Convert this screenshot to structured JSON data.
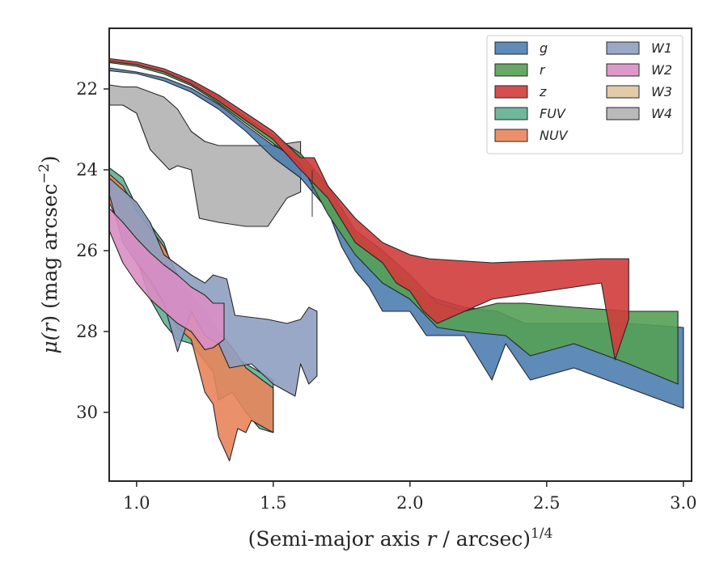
{
  "chart_data": {
    "type": "area",
    "xlabel": "(Semi-major axis r / arcsec)",
    "xlabel_parts": {
      "pre": "(Semi-major axis ",
      "var": "r",
      "post": " / arcsec)",
      "sup": "1/4"
    },
    "ylabel_parts": {
      "mu": "μ(",
      "var": "r",
      "mid": ") (mag arcsec",
      "sup": "−2",
      "post": ")"
    },
    "xlim": [
      0.9,
      3.03
    ],
    "ylim": [
      31.7,
      20.5
    ],
    "y_inverted": true,
    "xticks": [
      1.0,
      1.5,
      2.0,
      2.5,
      3.0
    ],
    "xtick_labels": [
      "1.0",
      "1.5",
      "2.0",
      "2.5",
      "3.0"
    ],
    "yticks": [
      22,
      24,
      26,
      28,
      30
    ],
    "ytick_labels": [
      "22",
      "24",
      "26",
      "28",
      "30"
    ],
    "grid": false,
    "legend": {
      "placement": "top-right",
      "columns": 2
    },
    "series": [
      {
        "name": "g",
        "color": "#4c7eb0",
        "upper": [
          [
            0.9,
            21.48
          ],
          [
            1.0,
            21.58
          ],
          [
            1.1,
            21.72
          ],
          [
            1.2,
            21.98
          ],
          [
            1.3,
            22.38
          ],
          [
            1.4,
            22.9
          ],
          [
            1.5,
            23.4
          ],
          [
            1.6,
            23.7
          ],
          [
            1.7,
            24.5
          ],
          [
            1.8,
            25.6
          ],
          [
            1.9,
            26.3
          ],
          [
            2.0,
            26.9
          ],
          [
            2.1,
            27.2
          ],
          [
            2.2,
            27.4
          ],
          [
            2.32,
            27.5
          ],
          [
            2.42,
            27.8
          ],
          [
            2.6,
            27.8
          ],
          [
            2.8,
            27.8
          ],
          [
            3.0,
            27.9
          ]
        ],
        "lower": [
          [
            3.0,
            29.9
          ],
          [
            2.8,
            29.4
          ],
          [
            2.6,
            28.9
          ],
          [
            2.44,
            29.2
          ],
          [
            2.35,
            28.3
          ],
          [
            2.3,
            29.2
          ],
          [
            2.2,
            28.1
          ],
          [
            2.1,
            28.1
          ],
          [
            2.06,
            28.1
          ],
          [
            2.0,
            27.5
          ],
          [
            1.95,
            27.5
          ],
          [
            1.9,
            27.5
          ],
          [
            1.85,
            26.9
          ],
          [
            1.8,
            26.5
          ],
          [
            1.75,
            25.9
          ],
          [
            1.7,
            25.0
          ],
          [
            1.6,
            24.2
          ],
          [
            1.5,
            23.7
          ],
          [
            1.4,
            23.05
          ],
          [
            1.3,
            22.5
          ],
          [
            1.2,
            22.08
          ],
          [
            1.1,
            21.8
          ],
          [
            1.0,
            21.62
          ],
          [
            0.9,
            21.55
          ]
        ]
      },
      {
        "name": "r",
        "color": "#55a055",
        "upper": [
          [
            0.9,
            21.28
          ],
          [
            1.0,
            21.38
          ],
          [
            1.1,
            21.55
          ],
          [
            1.2,
            21.82
          ],
          [
            1.3,
            22.2
          ],
          [
            1.4,
            22.7
          ],
          [
            1.5,
            23.15
          ],
          [
            1.6,
            23.6
          ],
          [
            1.7,
            24.4
          ],
          [
            1.8,
            25.5
          ],
          [
            1.9,
            26.0
          ],
          [
            2.0,
            26.6
          ],
          [
            2.1,
            27.3
          ],
          [
            2.2,
            27.5
          ],
          [
            2.32,
            27.3
          ],
          [
            2.42,
            27.3
          ],
          [
            2.6,
            27.4
          ],
          [
            2.8,
            27.5
          ],
          [
            2.98,
            27.5
          ]
        ],
        "lower": [
          [
            2.98,
            29.3
          ],
          [
            2.8,
            28.8
          ],
          [
            2.6,
            28.3
          ],
          [
            2.44,
            28.6
          ],
          [
            2.35,
            28.1
          ],
          [
            2.2,
            28.0
          ],
          [
            2.1,
            27.9
          ],
          [
            2.0,
            27.2
          ],
          [
            1.9,
            26.8
          ],
          [
            1.8,
            26.1
          ],
          [
            1.7,
            25.1
          ],
          [
            1.6,
            23.85
          ],
          [
            1.5,
            23.35
          ],
          [
            1.4,
            22.85
          ],
          [
            1.3,
            22.35
          ],
          [
            1.2,
            21.92
          ],
          [
            1.1,
            21.63
          ],
          [
            1.0,
            21.44
          ],
          [
            0.9,
            21.35
          ]
        ]
      },
      {
        "name": "z",
        "color": "#d03c3c",
        "upper": [
          [
            0.9,
            21.25
          ],
          [
            1.0,
            21.33
          ],
          [
            1.1,
            21.5
          ],
          [
            1.2,
            21.78
          ],
          [
            1.3,
            22.15
          ],
          [
            1.4,
            22.6
          ],
          [
            1.5,
            23.05
          ],
          [
            1.6,
            23.7
          ],
          [
            1.65,
            23.7
          ],
          [
            1.7,
            24.4
          ],
          [
            1.8,
            25.2
          ],
          [
            1.9,
            25.8
          ],
          [
            2.0,
            26.1
          ],
          [
            2.07,
            26.2
          ],
          [
            2.3,
            26.3
          ],
          [
            2.7,
            26.2
          ],
          [
            2.8,
            26.2
          ]
        ],
        "lower": [
          [
            2.8,
            27.7
          ],
          [
            2.75,
            28.7
          ],
          [
            2.7,
            26.8
          ],
          [
            2.5,
            27.0
          ],
          [
            2.3,
            27.2
          ],
          [
            2.1,
            27.8
          ],
          [
            2.05,
            27.5
          ],
          [
            2.0,
            27.0
          ],
          [
            1.95,
            26.8
          ],
          [
            1.9,
            26.3
          ],
          [
            1.8,
            25.8
          ],
          [
            1.7,
            24.7
          ],
          [
            1.6,
            24.0
          ],
          [
            1.5,
            23.25
          ],
          [
            1.4,
            22.78
          ],
          [
            1.3,
            22.3
          ],
          [
            1.2,
            21.88
          ],
          [
            1.1,
            21.58
          ],
          [
            1.0,
            21.4
          ],
          [
            0.9,
            21.32
          ]
        ]
      },
      {
        "name": "FUV",
        "color": "#5fb092",
        "upper": [
          [
            0.9,
            23.95
          ],
          [
            0.95,
            24.2
          ],
          [
            1.0,
            24.9
          ],
          [
            1.1,
            25.8
          ],
          [
            1.15,
            26.8
          ],
          [
            1.2,
            27.3
          ],
          [
            1.25,
            27.8
          ],
          [
            1.3,
            28.2
          ],
          [
            1.35,
            28.6
          ],
          [
            1.4,
            28.8
          ],
          [
            1.5,
            29.2
          ]
        ],
        "lower": [
          [
            1.5,
            30.5
          ],
          [
            1.45,
            30.4
          ],
          [
            1.4,
            30.0
          ],
          [
            1.35,
            29.5
          ],
          [
            1.3,
            29.7
          ],
          [
            1.28,
            29.0
          ],
          [
            1.2,
            28.3
          ],
          [
            1.15,
            28.2
          ],
          [
            1.1,
            27.8
          ],
          [
            1.05,
            27.2
          ],
          [
            1.0,
            26.2
          ],
          [
            0.95,
            25.2
          ],
          [
            0.9,
            24.5
          ]
        ]
      },
      {
        "name": "NUV",
        "color": "#e8855c",
        "upper": [
          [
            0.9,
            24.1
          ],
          [
            0.95,
            24.4
          ],
          [
            1.0,
            25.0
          ],
          [
            1.1,
            25.9
          ],
          [
            1.15,
            26.6
          ],
          [
            1.2,
            27.1
          ],
          [
            1.25,
            27.5
          ],
          [
            1.3,
            28.0
          ],
          [
            1.35,
            28.4
          ],
          [
            1.4,
            28.9
          ],
          [
            1.5,
            29.4
          ]
        ],
        "lower": [
          [
            1.5,
            30.5
          ],
          [
            1.42,
            30.2
          ],
          [
            1.4,
            30.5
          ],
          [
            1.37,
            30.4
          ],
          [
            1.34,
            31.2
          ],
          [
            1.3,
            30.6
          ],
          [
            1.28,
            29.8
          ],
          [
            1.25,
            29.5
          ],
          [
            1.2,
            28.2
          ],
          [
            1.15,
            27.9
          ],
          [
            1.1,
            27.3
          ],
          [
            1.05,
            26.8
          ],
          [
            1.0,
            26.3
          ],
          [
            0.95,
            25.6
          ],
          [
            0.9,
            24.8
          ]
        ]
      },
      {
        "name": "W1",
        "color": "#8f9fc2",
        "upper": [
          [
            0.9,
            24.2
          ],
          [
            0.95,
            24.5
          ],
          [
            1.0,
            24.8
          ],
          [
            1.05,
            25.3
          ],
          [
            1.1,
            26.1
          ],
          [
            1.2,
            26.6
          ],
          [
            1.25,
            26.8
          ],
          [
            1.28,
            26.6
          ],
          [
            1.33,
            26.7
          ],
          [
            1.36,
            27.6
          ],
          [
            1.48,
            27.7
          ],
          [
            1.55,
            27.8
          ],
          [
            1.6,
            27.7
          ],
          [
            1.63,
            27.4
          ],
          [
            1.66,
            27.5
          ]
        ],
        "lower": [
          [
            1.66,
            29.1
          ],
          [
            1.63,
            29.3
          ],
          [
            1.6,
            28.8
          ],
          [
            1.58,
            29.6
          ],
          [
            1.5,
            29.3
          ],
          [
            1.42,
            28.8
          ],
          [
            1.34,
            28.9
          ],
          [
            1.3,
            28.3
          ],
          [
            1.25,
            28.1
          ],
          [
            1.2,
            27.5
          ],
          [
            1.15,
            28.5
          ],
          [
            1.1,
            27.3
          ],
          [
            1.05,
            26.7
          ],
          [
            1.0,
            26.3
          ],
          [
            0.95,
            25.8
          ],
          [
            0.9,
            24.6
          ]
        ]
      },
      {
        "name": "W2",
        "color": "#d98ec4",
        "upper": [
          [
            0.9,
            24.95
          ],
          [
            0.95,
            25.3
          ],
          [
            1.0,
            25.7
          ],
          [
            1.05,
            26.05
          ],
          [
            1.1,
            26.35
          ],
          [
            1.15,
            26.6
          ],
          [
            1.2,
            26.9
          ],
          [
            1.25,
            27.1
          ],
          [
            1.28,
            27.3
          ],
          [
            1.32,
            27.3
          ]
        ],
        "lower": [
          [
            1.32,
            28.2
          ],
          [
            1.28,
            28.4
          ],
          [
            1.25,
            28.45
          ],
          [
            1.2,
            28.0
          ],
          [
            1.15,
            27.8
          ],
          [
            1.1,
            27.5
          ],
          [
            1.05,
            27.2
          ],
          [
            1.0,
            26.8
          ],
          [
            0.95,
            26.3
          ],
          [
            0.9,
            25.5
          ]
        ]
      },
      {
        "name": "W3",
        "color": "#e0c4a0",
        "upper": [],
        "lower": []
      },
      {
        "name": "W4",
        "color": "#b3b3b3",
        "upper": [
          [
            0.9,
            21.9
          ],
          [
            0.95,
            21.95
          ],
          [
            1.0,
            21.95
          ],
          [
            1.1,
            22.2
          ],
          [
            1.15,
            22.5
          ],
          [
            1.2,
            23.05
          ],
          [
            1.25,
            23.3
          ],
          [
            1.3,
            23.4
          ],
          [
            1.5,
            23.4
          ],
          [
            1.6,
            23.3
          ]
        ],
        "lower": [
          [
            1.6,
            24.55
          ],
          [
            1.55,
            24.7
          ],
          [
            1.48,
            25.4
          ],
          [
            1.4,
            25.4
          ],
          [
            1.3,
            25.3
          ],
          [
            1.23,
            25.2
          ],
          [
            1.2,
            24.0
          ],
          [
            1.15,
            23.9
          ],
          [
            1.12,
            24.0
          ],
          [
            1.05,
            23.5
          ],
          [
            1.0,
            22.6
          ],
          [
            0.95,
            22.4
          ],
          [
            0.9,
            22.4
          ]
        ]
      }
    ]
  }
}
